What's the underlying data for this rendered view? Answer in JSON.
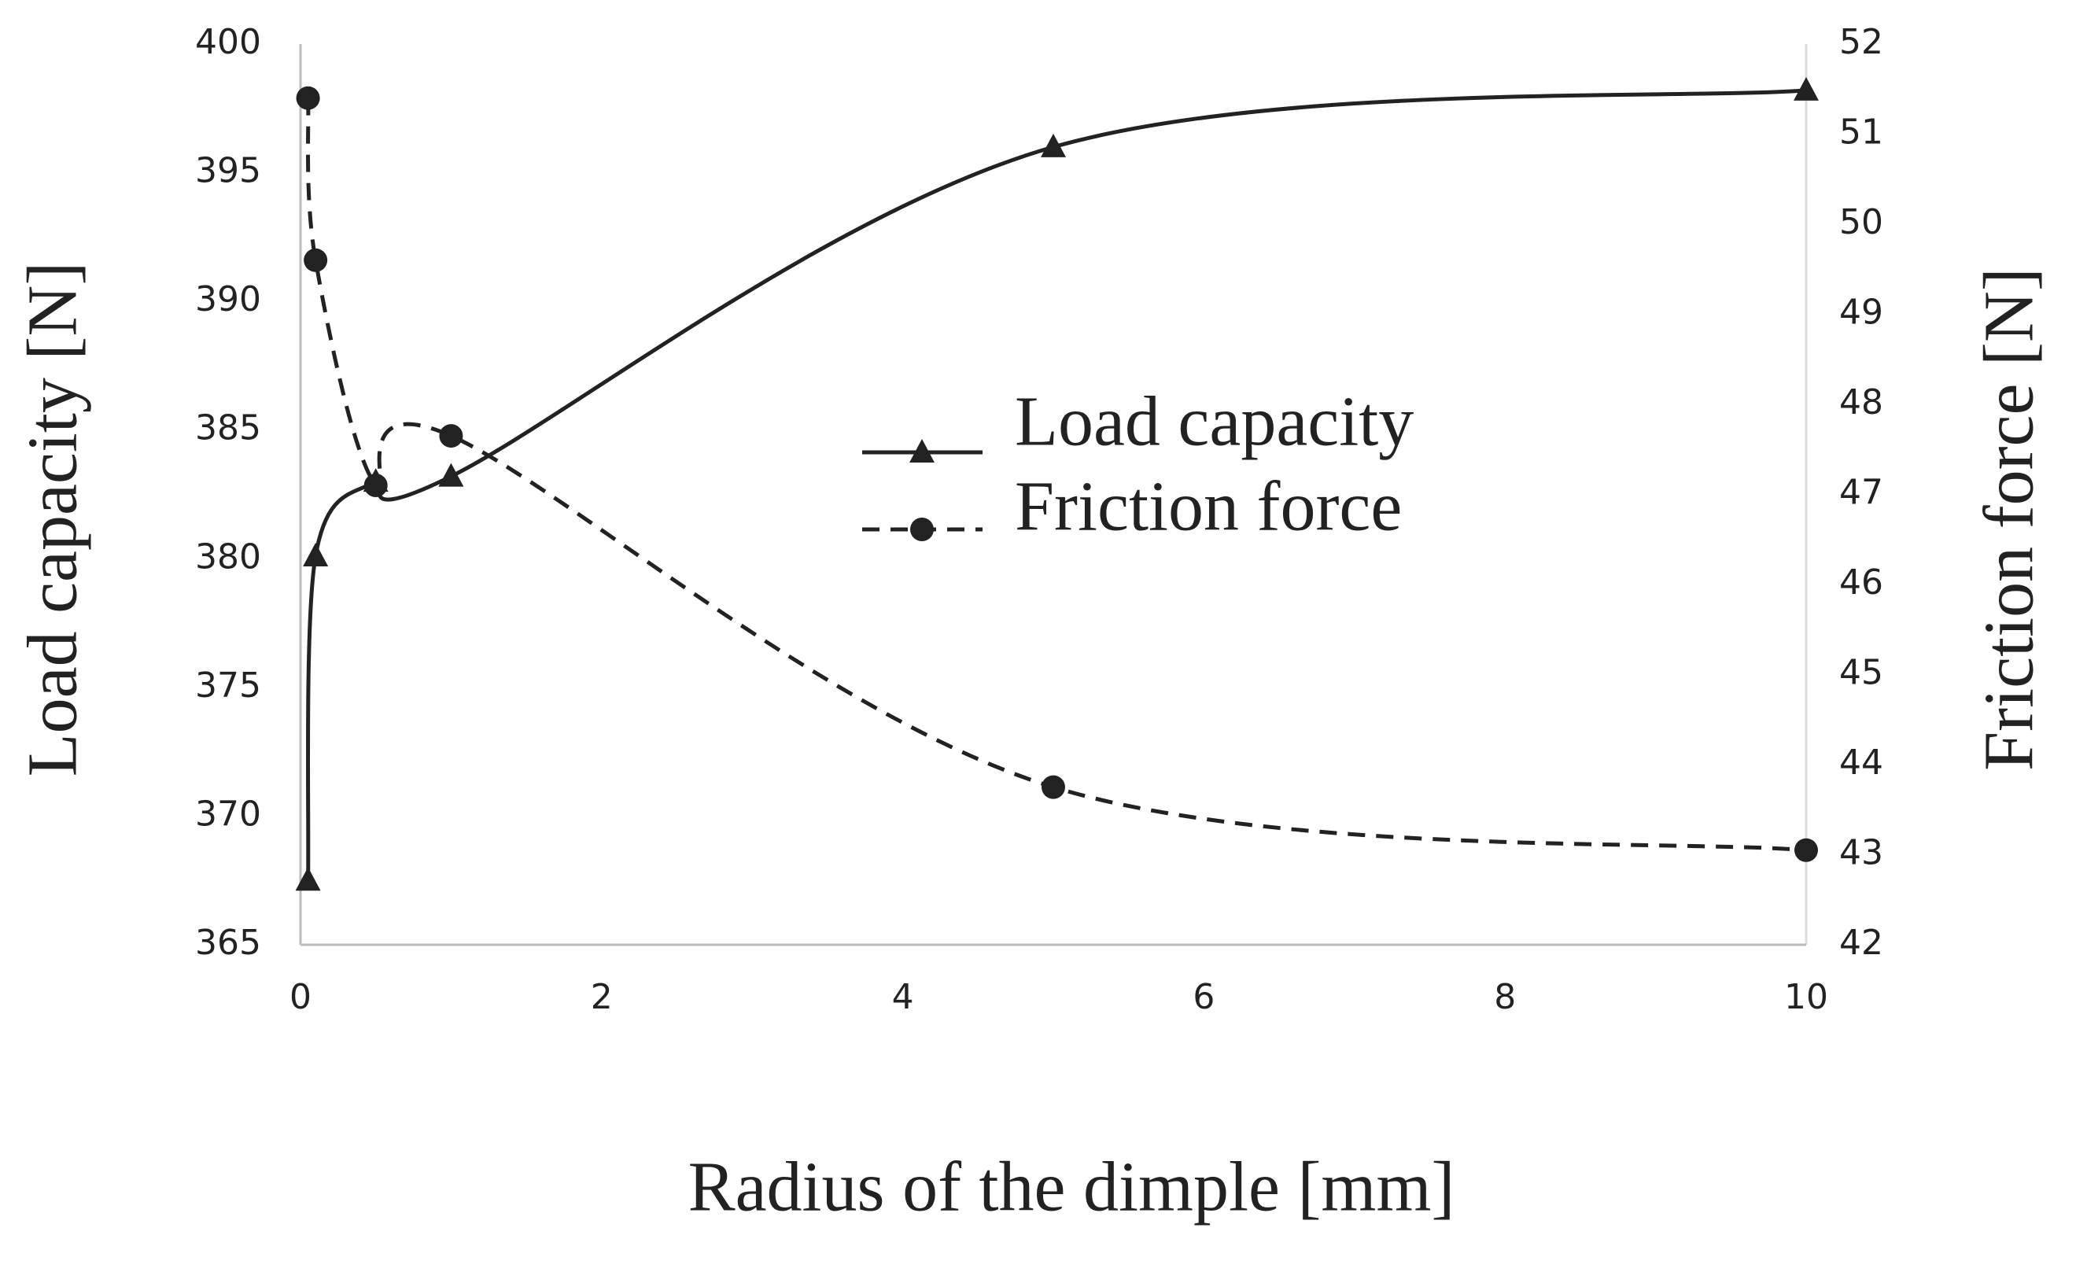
{
  "chart_data": {
    "type": "line",
    "x_label": "Radius of the dimple  [mm]",
    "y_label": "Load capacity [N]",
    "y2_label": "Friction force [N]",
    "x": [
      0.05,
      0.1,
      0.5,
      1,
      5,
      10
    ],
    "series": [
      {
        "name": "Load capacity",
        "color": "#222222",
        "line_style": "solid",
        "marker": "triangle",
        "values": [
          367.5,
          380.1,
          383,
          383.2,
          396,
          398.2
        ]
      },
      {
        "name": "Friction force",
        "color": "#222222",
        "line_style": "dashed",
        "marker": "circle",
        "axis": "y2",
        "values": [
          51.4,
          49.6,
          47.1,
          47.65,
          43.75,
          43.05
        ]
      }
    ],
    "xlim": [
      0,
      10
    ],
    "xticks": [
      0,
      2,
      4,
      6,
      8,
      10
    ],
    "ylim": [
      365,
      400
    ],
    "yticks": [
      365,
      370,
      375,
      380,
      385,
      390,
      395,
      400
    ],
    "y2lim": [
      42,
      52
    ],
    "y2ticks": [
      42,
      43,
      44,
      45,
      46,
      47,
      48,
      49,
      50,
      51,
      52
    ],
    "grid": false,
    "legend": "center"
  }
}
